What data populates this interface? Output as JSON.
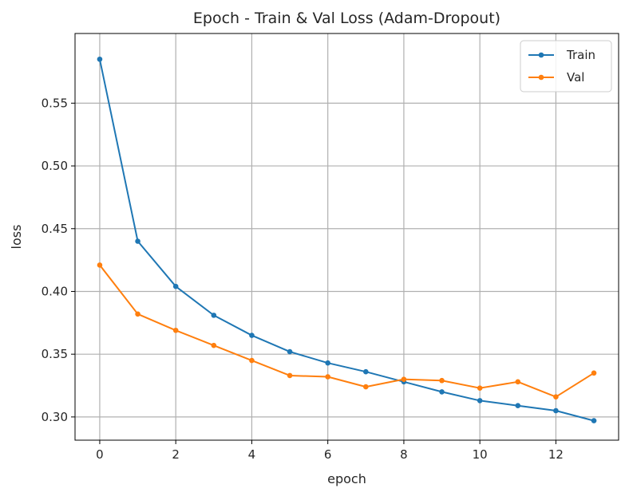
{
  "chart_data": {
    "type": "line",
    "title": "Epoch - Train & Val Loss (Adam-Dropout)",
    "xlabel": "epoch",
    "ylabel": "loss",
    "xlim": [
      -0.65,
      13.65
    ],
    "ylim": [
      0.2815,
      0.6055
    ],
    "xticks": [
      0,
      2,
      4,
      6,
      8,
      10,
      12
    ],
    "yticks": [
      0.3,
      0.35,
      0.4,
      0.45,
      0.5,
      0.55
    ],
    "ytick_labels": [
      "0.30",
      "0.35",
      "0.40",
      "0.45",
      "0.50",
      "0.55"
    ],
    "grid": true,
    "legend_position": "top-right",
    "x": [
      0,
      1,
      2,
      3,
      4,
      5,
      6,
      7,
      8,
      9,
      10,
      11,
      12,
      13
    ],
    "series": [
      {
        "name": "Train",
        "color": "#1f77b4",
        "values": [
          0.585,
          0.44,
          0.404,
          0.381,
          0.365,
          0.352,
          0.343,
          0.336,
          0.328,
          0.32,
          0.313,
          0.309,
          0.305,
          0.297
        ]
      },
      {
        "name": "Val",
        "color": "#ff7f0e",
        "values": [
          0.421,
          0.382,
          0.369,
          0.357,
          0.345,
          0.333,
          0.332,
          0.324,
          0.33,
          0.329,
          0.323,
          0.328,
          0.316,
          0.335
        ]
      }
    ]
  }
}
